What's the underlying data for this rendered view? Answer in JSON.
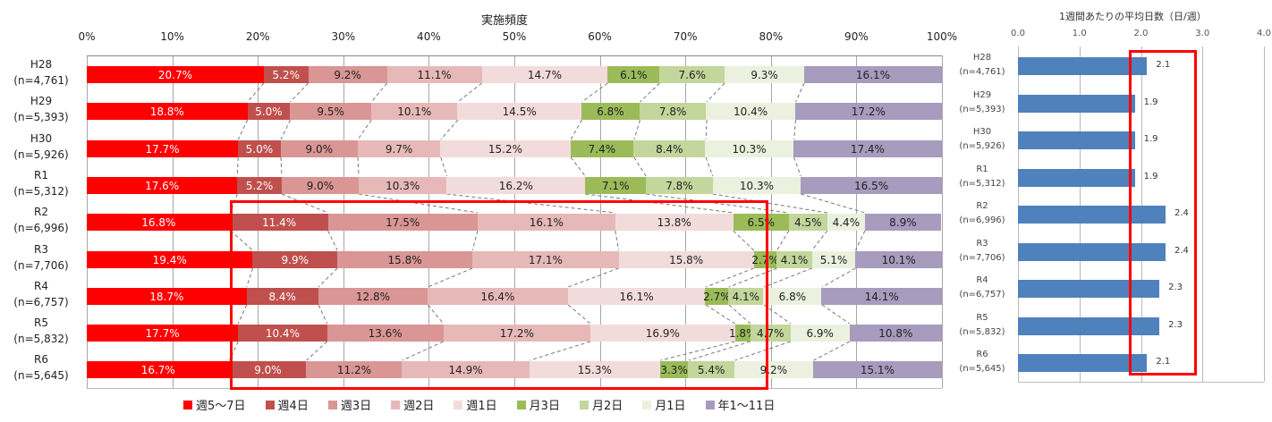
{
  "chart_data": [
    {
      "type": "bar",
      "subtype": "stacked-horizontal-100",
      "title": "実施頻度",
      "xlabel": "",
      "ylabel": "",
      "xlim": [
        0,
        100
      ],
      "x_ticks": [
        "0%",
        "10%",
        "20%",
        "30%",
        "40%",
        "50%",
        "60%",
        "70%",
        "80%",
        "90%",
        "100%"
      ],
      "grid": true,
      "legend_position": "bottom",
      "categories": [
        {
          "label": "H28",
          "n": "(n=4,761)"
        },
        {
          "label": "H29",
          "n": "(n=5,393)"
        },
        {
          "label": "H30",
          "n": "(n=5,926)"
        },
        {
          "label": "R1",
          "n": "(n=5,312)"
        },
        {
          "label": "R2",
          "n": "(n=6,996)"
        },
        {
          "label": "R3",
          "n": "(n=7,706)"
        },
        {
          "label": "R4",
          "n": "(n=6,757)"
        },
        {
          "label": "R5",
          "n": "(n=5,832)"
        },
        {
          "label": "R6",
          "n": "(n=5,645)"
        }
      ],
      "series": [
        {
          "name": "週5〜7日",
          "color": "#ff0000",
          "text_color": "#ffffff",
          "values": [
            20.7,
            18.8,
            17.7,
            17.6,
            16.8,
            19.4,
            18.7,
            17.7,
            16.7
          ]
        },
        {
          "name": "週4日",
          "color": "#c0504d",
          "text_color": "#ffffff",
          "values": [
            5.2,
            5.0,
            5.0,
            5.2,
            11.4,
            9.9,
            8.4,
            10.4,
            9.0
          ]
        },
        {
          "name": "週3日",
          "color": "#d99694",
          "text_color": "#222222",
          "values": [
            9.2,
            9.5,
            9.0,
            9.0,
            17.5,
            15.8,
            12.8,
            13.6,
            11.2
          ]
        },
        {
          "name": "週2日",
          "color": "#e6b9b8",
          "text_color": "#222222",
          "values": [
            11.1,
            10.1,
            9.7,
            10.3,
            16.1,
            17.1,
            16.4,
            17.2,
            14.9
          ]
        },
        {
          "name": "週1日",
          "color": "#f2dcdb",
          "text_color": "#222222",
          "values": [
            14.7,
            14.5,
            15.2,
            16.2,
            13.8,
            15.8,
            16.1,
            16.9,
            15.3
          ]
        },
        {
          "name": "月3日",
          "color": "#9bbb59",
          "text_color": "#222222",
          "values": [
            6.1,
            6.8,
            7.4,
            7.1,
            6.5,
            2.7,
            2.7,
            1.8,
            3.3
          ]
        },
        {
          "name": "月2日",
          "color": "#c3d69b",
          "text_color": "#222222",
          "values": [
            7.6,
            7.8,
            8.4,
            7.8,
            4.5,
            4.1,
            4.1,
            4.7,
            5.4
          ]
        },
        {
          "name": "月1日",
          "color": "#ebf1de",
          "text_color": "#222222",
          "values": [
            9.3,
            10.4,
            10.3,
            10.3,
            4.4,
            5.1,
            6.8,
            6.9,
            9.2
          ]
        },
        {
          "name": "年1〜11日",
          "color": "#a79bbe",
          "text_color": "#222222",
          "values": [
            16.1,
            17.2,
            17.4,
            16.5,
            8.9,
            10.1,
            14.1,
            10.8,
            15.1
          ]
        }
      ],
      "annotations": [
        {
          "type": "highlight-box",
          "color": "#ff0000",
          "rows": [
            "R2",
            "R6"
          ],
          "x_range_pct": [
            16.8,
            79.5
          ]
        }
      ]
    },
    {
      "type": "bar",
      "subtype": "horizontal",
      "title": "1週間あたりの平均日数（日/週）",
      "xlim": [
        0,
        4
      ],
      "x_ticks": [
        "0.0",
        "1.0",
        "2.0",
        "3.0",
        "4.0"
      ],
      "grid": true,
      "categories": [
        {
          "label": "H28",
          "n": "(n=4,761)"
        },
        {
          "label": "H29",
          "n": "(n=5,393)"
        },
        {
          "label": "H30",
          "n": "(n=5,926)"
        },
        {
          "label": "R1",
          "n": "(n=5,312)"
        },
        {
          "label": "R2",
          "n": "(n=6,996)"
        },
        {
          "label": "R3",
          "n": "(n=7,706)"
        },
        {
          "label": "R4",
          "n": "(n=6,757)"
        },
        {
          "label": "R5",
          "n": "(n=5,832)"
        },
        {
          "label": "R6",
          "n": "(n=5,645)"
        }
      ],
      "series": [
        {
          "name": "平均日数",
          "color": "#4f81bd",
          "values": [
            2.1,
            1.9,
            1.9,
            1.9,
            2.4,
            2.4,
            2.3,
            2.3,
            2.1
          ],
          "labels": [
            "2.1",
            "1.9",
            "1.9",
            "1.9",
            "2.4",
            "2.4",
            "2.3",
            "2.3",
            "2.1"
          ]
        }
      ],
      "annotations": [
        {
          "type": "highlight-box",
          "color": "#ff0000",
          "x_range": [
            1.8,
            2.9
          ],
          "rows": [
            "H28",
            "R6"
          ]
        }
      ]
    }
  ]
}
